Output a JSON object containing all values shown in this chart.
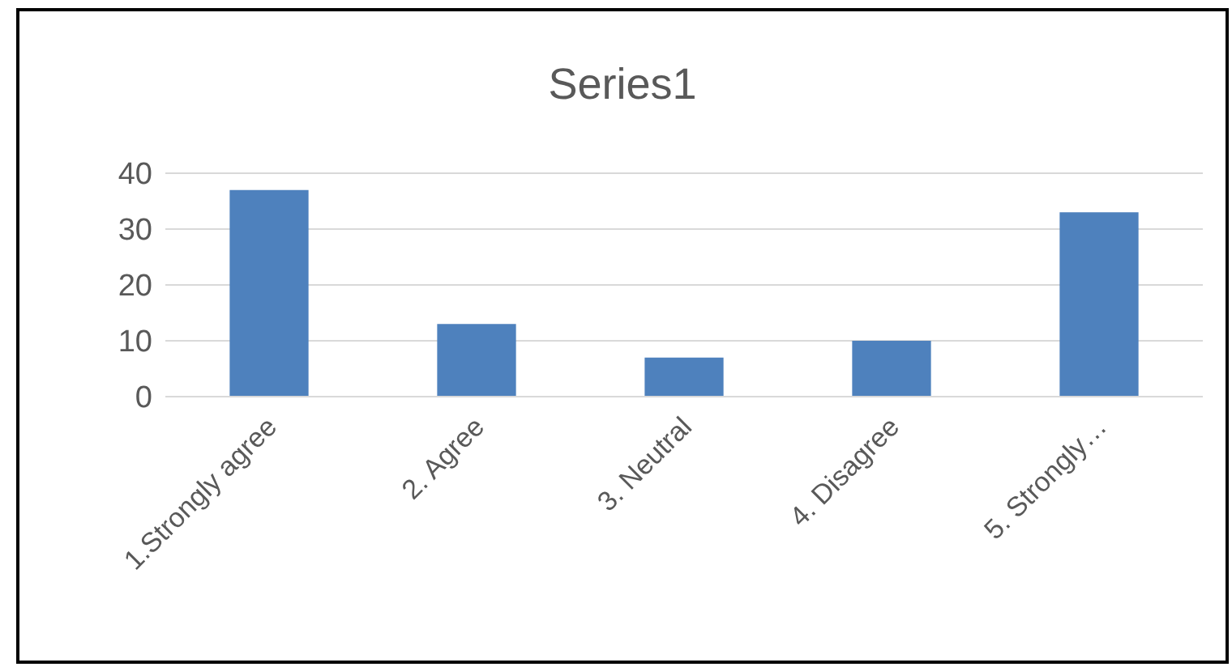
{
  "chart_data": {
    "type": "bar",
    "title": "Series1",
    "categories": [
      "1.Strongly agree",
      "2. Agree",
      "3. Neutral",
      "4. Disagree",
      "5. Strongly…"
    ],
    "values": [
      37,
      13,
      7,
      10,
      33
    ],
    "color": "#4e81bd",
    "ylim": [
      0,
      40
    ],
    "yticks": [
      0,
      10,
      20,
      30,
      40
    ],
    "grid": "y"
  }
}
